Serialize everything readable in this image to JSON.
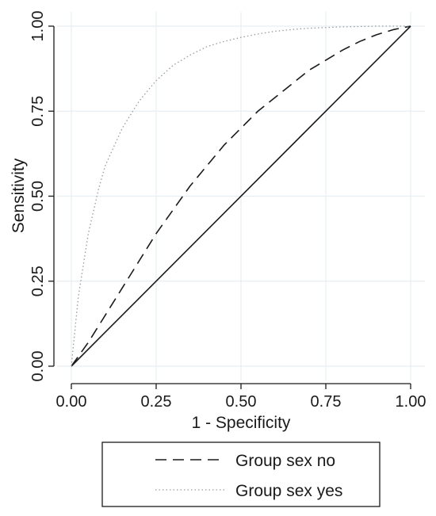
{
  "chart_data": {
    "type": "line",
    "title": "",
    "xlabel": "1 - Specificity",
    "ylabel": "Sensitivity",
    "xlim": [
      0,
      1
    ],
    "ylim": [
      0,
      1
    ],
    "x_ticks": [
      "0.00",
      "0.25",
      "0.50",
      "0.75",
      "1.00"
    ],
    "y_ticks": [
      "0.00",
      "0.25",
      "0.50",
      "0.75",
      "1.00"
    ],
    "grid": true,
    "legend_position": "bottom",
    "reference_line": {
      "x": [
        0,
        1
      ],
      "y": [
        0,
        1
      ],
      "style": "solid",
      "color": "#1a1a1a"
    },
    "series": [
      {
        "name": "Group sex no",
        "style": "dashed",
        "color": "#1a1a1a",
        "x": [
          0,
          0.05,
          0.1,
          0.15,
          0.2,
          0.25,
          0.3,
          0.35,
          0.4,
          0.45,
          0.5,
          0.55,
          0.6,
          0.65,
          0.7,
          0.75,
          0.8,
          0.85,
          0.9,
          0.95,
          1.0
        ],
        "y": [
          0,
          0.07,
          0.15,
          0.23,
          0.31,
          0.39,
          0.46,
          0.53,
          0.59,
          0.65,
          0.7,
          0.75,
          0.79,
          0.83,
          0.87,
          0.9,
          0.93,
          0.955,
          0.975,
          0.99,
          1.0
        ]
      },
      {
        "name": "Group sex yes",
        "style": "dotted",
        "color": "#9a9a9a",
        "x": [
          0,
          0.02,
          0.05,
          0.08,
          0.1,
          0.15,
          0.2,
          0.25,
          0.3,
          0.35,
          0.4,
          0.45,
          0.5,
          0.55,
          0.6,
          0.65,
          0.7,
          0.75,
          0.8,
          0.85,
          0.9,
          0.95,
          1.0
        ],
        "y": [
          0,
          0.2,
          0.39,
          0.52,
          0.59,
          0.7,
          0.78,
          0.84,
          0.885,
          0.915,
          0.94,
          0.955,
          0.967,
          0.977,
          0.985,
          0.99,
          0.994,
          0.996,
          0.998,
          0.999,
          1.0,
          1.0,
          1.0
        ]
      }
    ]
  }
}
